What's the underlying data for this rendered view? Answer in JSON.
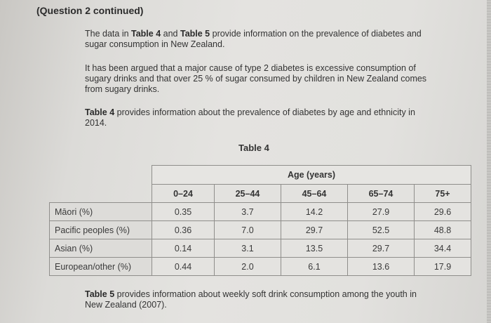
{
  "heading": "(Question 2 continued)",
  "paragraphs": {
    "p1": {
      "part1": "The data in ",
      "bold1": "Table 4",
      "part2": " and ",
      "bold2": "Table 5",
      "part3": " provide information on the prevalence of diabetes and sugar consumption in New Zealand."
    },
    "p2": "It has been argued that a major cause of type 2 diabetes is excessive consumption of sugary drinks and that over 25 % of sugar consumed by children in New Zealand comes from sugary drinks.",
    "p3": {
      "bold": "Table 4",
      "rest": " provides information about the prevalence of diabetes by age and ethnicity in 2014."
    },
    "p4": {
      "bold": "Table 5",
      "rest": " provides information about weekly soft drink consumption among the youth in New Zealand (2007)."
    }
  },
  "table4": {
    "title": "Table 4",
    "group_header": "Age (years)",
    "columns": [
      "0–24",
      "25–44",
      "45–64",
      "65–74",
      "75+"
    ],
    "rows": [
      {
        "label": "Māori (%)",
        "values": [
          "0.35",
          "3.7",
          "14.2",
          "27.9",
          "29.6"
        ]
      },
      {
        "label": "Pacific peoples (%)",
        "values": [
          "0.36",
          "7.0",
          "29.7",
          "52.5",
          "48.8"
        ]
      },
      {
        "label": "Asian (%)",
        "values": [
          "0.14",
          "3.1",
          "13.5",
          "29.7",
          "34.4"
        ]
      },
      {
        "label": "European/other (%)",
        "values": [
          "0.44",
          "2.0",
          "6.1",
          "13.6",
          "17.9"
        ]
      }
    ]
  },
  "chart_data": {
    "type": "table",
    "title": "Table 4",
    "subtitle": "Prevalence of diabetes by age and ethnicity, 2014",
    "column_group": "Age (years)",
    "categories": [
      "0–24",
      "25–44",
      "45–64",
      "65–74",
      "75+"
    ],
    "series": [
      {
        "name": "Māori (%)",
        "values": [
          0.35,
          3.7,
          14.2,
          27.9,
          29.6
        ]
      },
      {
        "name": "Pacific peoples (%)",
        "values": [
          0.36,
          7.0,
          29.7,
          52.5,
          48.8
        ]
      },
      {
        "name": "Asian (%)",
        "values": [
          0.14,
          3.1,
          13.5,
          29.7,
          34.4
        ]
      },
      {
        "name": "European/other (%)",
        "values": [
          0.44,
          2.0,
          6.1,
          13.6,
          17.9
        ]
      }
    ]
  }
}
